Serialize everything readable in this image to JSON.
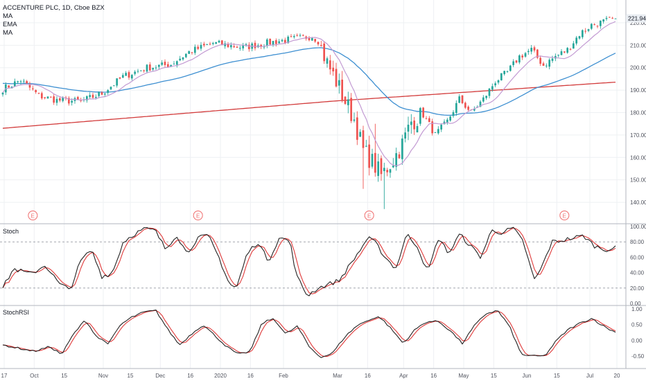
{
  "header": {
    "symbol_line": "ACCENTURE PLC, 1D, Cboe BZX",
    "indicators": [
      "MA",
      "EMA",
      "MA"
    ]
  },
  "price_badge": "221.94",
  "colors": {
    "up": "#26a69a",
    "down": "#ef5350",
    "ma_short": "#c39bd3",
    "ema": "#3d8fd1",
    "ma_long": "#d23a3a",
    "stoch_k": "#222222",
    "stoch_d": "#e03a3a",
    "grid": "#eef0f3",
    "axis_text": "#50535e",
    "earnings": "#ef6c6c",
    "badge_bg": "#e9edf2"
  },
  "x_axis": {
    "labels": [
      {
        "text": "17",
        "i": 0
      },
      {
        "text": "Oct",
        "i": 10
      },
      {
        "text": "15",
        "i": 20
      },
      {
        "text": "Nov",
        "i": 33
      },
      {
        "text": "15",
        "i": 42
      },
      {
        "text": "Dec",
        "i": 52
      },
      {
        "text": "16",
        "i": 62
      },
      {
        "text": "2020",
        "i": 72
      },
      {
        "text": "16",
        "i": 82
      },
      {
        "text": "Feb",
        "i": 93
      },
      {
        "text": "Mar",
        "i": 111
      },
      {
        "text": "16",
        "i": 121
      },
      {
        "text": "Apr",
        "i": 133
      },
      {
        "text": "16",
        "i": 143
      },
      {
        "text": "May",
        "i": 153
      },
      {
        "text": "15",
        "i": 163
      },
      {
        "text": "Jun",
        "i": 174
      },
      {
        "text": "15",
        "i": 184
      },
      {
        "text": "Jul",
        "i": 195
      },
      {
        "text": "20",
        "i": 204
      }
    ]
  },
  "earnings_markers": [
    {
      "label": "E",
      "i": 10
    },
    {
      "label": "E",
      "i": 65
    },
    {
      "label": "E",
      "i": 122
    },
    {
      "label": "E",
      "i": 187
    }
  ],
  "panels": [
    {
      "name": "Stoch",
      "ticks": [
        "100.00",
        "80.00",
        "60.00",
        "40.00",
        "20.00",
        "0.00"
      ]
    },
    {
      "name": "StochRSI",
      "ticks": [
        "1.00",
        "0.50",
        "0.00",
        "-0.50"
      ]
    }
  ],
  "chart_data": {
    "type": "candlestick",
    "title": "ACCENTURE PLC, 1D, Cboe BZX",
    "price_ticks": [
      140,
      150,
      160,
      170,
      180,
      190,
      200,
      210,
      220
    ],
    "price_range": [
      134,
      226
    ],
    "last_price": 221.94,
    "waypoints": [
      [
        0,
        190.5
      ],
      [
        6,
        194.5
      ],
      [
        12,
        187.5
      ],
      [
        18,
        185.5
      ],
      [
        26,
        185.0
      ],
      [
        33,
        188.5
      ],
      [
        40,
        196.0
      ],
      [
        48,
        200.0
      ],
      [
        56,
        201.5
      ],
      [
        62,
        207.0
      ],
      [
        70,
        211.0
      ],
      [
        80,
        209.0
      ],
      [
        90,
        211.5
      ],
      [
        103,
        214.0
      ],
      [
        105,
        212.0
      ],
      [
        108,
        202.0
      ],
      [
        111,
        194.0
      ],
      [
        114,
        185.0
      ],
      [
        117,
        177.0
      ],
      [
        120,
        163.0
      ],
      [
        123,
        158.0
      ],
      [
        126,
        152.0
      ],
      [
        130,
        159.0
      ],
      [
        133,
        166.0
      ],
      [
        136,
        176.0
      ],
      [
        140,
        179.0
      ],
      [
        144,
        170.0
      ],
      [
        148,
        176.0
      ],
      [
        152,
        186.0
      ],
      [
        156,
        180.0
      ],
      [
        160,
        186.0
      ],
      [
        164,
        194.0
      ],
      [
        168,
        198.0
      ],
      [
        172,
        205.0
      ],
      [
        176,
        208.0
      ],
      [
        180,
        201.0
      ],
      [
        184,
        205.0
      ],
      [
        188,
        208.0
      ],
      [
        192,
        215.0
      ],
      [
        196,
        219.0
      ],
      [
        200,
        220.5
      ],
      [
        204,
        221.94
      ]
    ],
    "stoch_waypoints": [
      [
        0,
        20
      ],
      [
        3,
        45
      ],
      [
        8,
        38
      ],
      [
        12,
        50
      ],
      [
        16,
        25
      ],
      [
        19,
        18
      ],
      [
        22,
        55
      ],
      [
        25,
        70
      ],
      [
        28,
        35
      ],
      [
        31,
        40
      ],
      [
        34,
        80
      ],
      [
        37,
        90
      ],
      [
        40,
        97
      ],
      [
        43,
        95
      ],
      [
        46,
        70
      ],
      [
        49,
        90
      ],
      [
        52,
        65
      ],
      [
        55,
        85
      ],
      [
        58,
        88
      ],
      [
        61,
        60
      ],
      [
        64,
        25
      ],
      [
        66,
        20
      ],
      [
        69,
        65
      ],
      [
        72,
        80
      ],
      [
        75,
        55
      ],
      [
        78,
        85
      ],
      [
        81,
        82
      ],
      [
        83,
        35
      ],
      [
        86,
        10
      ],
      [
        89,
        20
      ],
      [
        92,
        25
      ],
      [
        95,
        30
      ],
      [
        98,
        50
      ],
      [
        101,
        70
      ],
      [
        103,
        85
      ],
      [
        105,
        80
      ],
      [
        108,
        60
      ],
      [
        111,
        45
      ],
      [
        114,
        90
      ],
      [
        117,
        75
      ],
      [
        120,
        40
      ],
      [
        123,
        85
      ],
      [
        126,
        65
      ],
      [
        129,
        90
      ],
      [
        132,
        75
      ],
      [
        135,
        60
      ],
      [
        138,
        95
      ],
      [
        141,
        92
      ],
      [
        144,
        98
      ],
      [
        147,
        80
      ],
      [
        150,
        30
      ],
      [
        152,
        45
      ],
      [
        155,
        80
      ],
      [
        158,
        82
      ],
      [
        161,
        85
      ],
      [
        164,
        88
      ],
      [
        167,
        75
      ],
      [
        170,
        70
      ],
      [
        173,
        72
      ]
    ],
    "stochrsi_waypoints": [
      [
        0,
        -0.15
      ],
      [
        4,
        -0.25
      ],
      [
        8,
        -0.35
      ],
      [
        12,
        -0.2
      ],
      [
        15,
        -0.45
      ],
      [
        18,
        0.2
      ],
      [
        21,
        0.65
      ],
      [
        24,
        0.1
      ],
      [
        27,
        -0.1
      ],
      [
        30,
        0.5
      ],
      [
        33,
        0.75
      ],
      [
        36,
        0.9
      ],
      [
        39,
        0.95
      ],
      [
        42,
        0.35
      ],
      [
        45,
        -0.15
      ],
      [
        48,
        0.2
      ],
      [
        51,
        0.5
      ],
      [
        54,
        0.15
      ],
      [
        57,
        -0.2
      ],
      [
        60,
        -0.45
      ],
      [
        63,
        -0.35
      ],
      [
        66,
        0.55
      ],
      [
        69,
        0.7
      ],
      [
        72,
        0.2
      ],
      [
        75,
        0.45
      ],
      [
        78,
        -0.2
      ],
      [
        81,
        -0.55
      ],
      [
        84,
        -0.4
      ],
      [
        87,
        0.1
      ],
      [
        90,
        0.45
      ],
      [
        93,
        0.65
      ],
      [
        96,
        0.75
      ],
      [
        99,
        0.35
      ],
      [
        102,
        -0.1
      ],
      [
        105,
        0.35
      ],
      [
        108,
        0.6
      ],
      [
        111,
        0.6
      ],
      [
        114,
        0.3
      ],
      [
        117,
        -0.1
      ],
      [
        120,
        0.45
      ],
      [
        123,
        0.85
      ],
      [
        126,
        0.95
      ],
      [
        129,
        0.45
      ],
      [
        132,
        -0.45
      ],
      [
        135,
        -0.5
      ],
      [
        138,
        -0.5
      ],
      [
        141,
        0.0
      ],
      [
        144,
        0.35
      ],
      [
        147,
        0.55
      ],
      [
        150,
        0.7
      ],
      [
        153,
        0.45
      ],
      [
        156,
        0.25
      ]
    ]
  }
}
